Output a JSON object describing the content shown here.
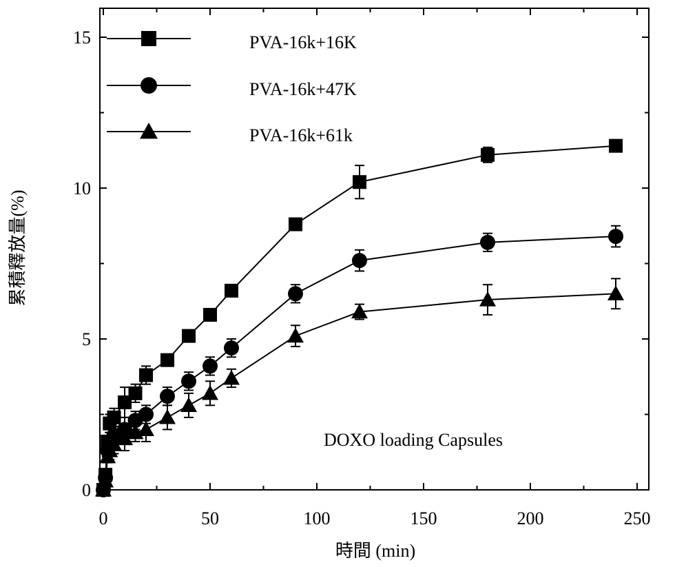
{
  "chart_data": {
    "type": "line",
    "xlabel": "時間 (min)",
    "ylabel": "累積釋放量(%)",
    "xlim": [
      -3,
      250
    ],
    "ylim": [
      0,
      15.5
    ],
    "xticks": [
      0,
      50,
      100,
      150,
      200,
      250
    ],
    "yticks": [
      0,
      5,
      10,
      15
    ],
    "legend_position": "top-left",
    "grid": false,
    "annotation": "DOXO loading Capsules",
    "series": [
      {
        "name": "PVA-16k+16K",
        "marker": "square",
        "x": [
          0,
          1,
          2,
          3,
          5,
          10,
          15,
          20,
          30,
          40,
          50,
          60,
          90,
          120,
          180,
          240
        ],
        "y": [
          0,
          0.5,
          1.6,
          2.2,
          2.4,
          2.9,
          3.2,
          3.8,
          4.3,
          5.1,
          5.8,
          6.6,
          8.8,
          10.2,
          11.1,
          11.4
        ],
        "err": [
          0,
          0.1,
          0.2,
          0.3,
          0.3,
          0.5,
          0.3,
          0.3,
          0.2,
          0.2,
          0.2,
          0.2,
          0.2,
          0.55,
          0.25,
          0.2
        ]
      },
      {
        "name": "PVA-16k+47K",
        "marker": "circle",
        "x": [
          0,
          1,
          2,
          3,
          5,
          10,
          15,
          20,
          30,
          40,
          50,
          60,
          90,
          120,
          180,
          240
        ],
        "y": [
          0,
          0.4,
          1.3,
          1.6,
          1.8,
          2.0,
          2.3,
          2.5,
          3.1,
          3.6,
          4.1,
          4.7,
          6.5,
          7.6,
          8.2,
          8.4
        ],
        "err": [
          0,
          0.1,
          0.2,
          0.3,
          0.3,
          0.4,
          0.3,
          0.3,
          0.3,
          0.3,
          0.3,
          0.3,
          0.3,
          0.35,
          0.3,
          0.35
        ]
      },
      {
        "name": "PVA-16k+61k",
        "marker": "triangle",
        "x": [
          0,
          1,
          2,
          3,
          5,
          10,
          15,
          20,
          30,
          40,
          50,
          60,
          90,
          120,
          180,
          240
        ],
        "y": [
          0,
          0.3,
          1.1,
          1.3,
          1.5,
          1.7,
          1.9,
          2.0,
          2.4,
          2.8,
          3.2,
          3.7,
          5.1,
          5.9,
          6.3,
          6.5
        ],
        "err": [
          0,
          0.1,
          0.2,
          0.3,
          0.3,
          0.4,
          0.3,
          0.4,
          0.4,
          0.4,
          0.4,
          0.3,
          0.35,
          0.25,
          0.5,
          0.5
        ]
      }
    ]
  }
}
